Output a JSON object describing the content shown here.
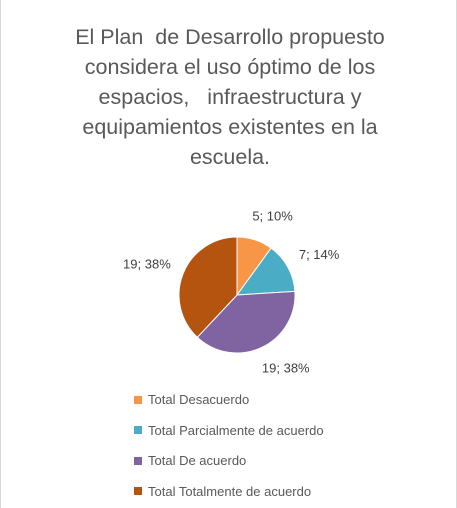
{
  "chart_data": {
    "type": "pie",
    "title": "El Plan  de Desarrollo propuesto considera el uso óptimo de los espacios,   infraestructura y equipamientos existentes en la escuela.",
    "series": [
      {
        "name": "Total Desacuerdo",
        "color": "#f79646"
      },
      {
        "name": "Total Parcialmente de acuerdo",
        "color": "#4bacc6"
      },
      {
        "name": "Total De acuerdo",
        "color": "#8064a2"
      },
      {
        "name": "Total Totalmente de acuerdo",
        "color": "#b5540f"
      }
    ],
    "values": [
      5,
      7,
      19,
      19
    ],
    "value_labels": [
      "5; 10%",
      "7; 14%",
      "19; 38%",
      "19; 38%"
    ],
    "legend": "bottom"
  }
}
